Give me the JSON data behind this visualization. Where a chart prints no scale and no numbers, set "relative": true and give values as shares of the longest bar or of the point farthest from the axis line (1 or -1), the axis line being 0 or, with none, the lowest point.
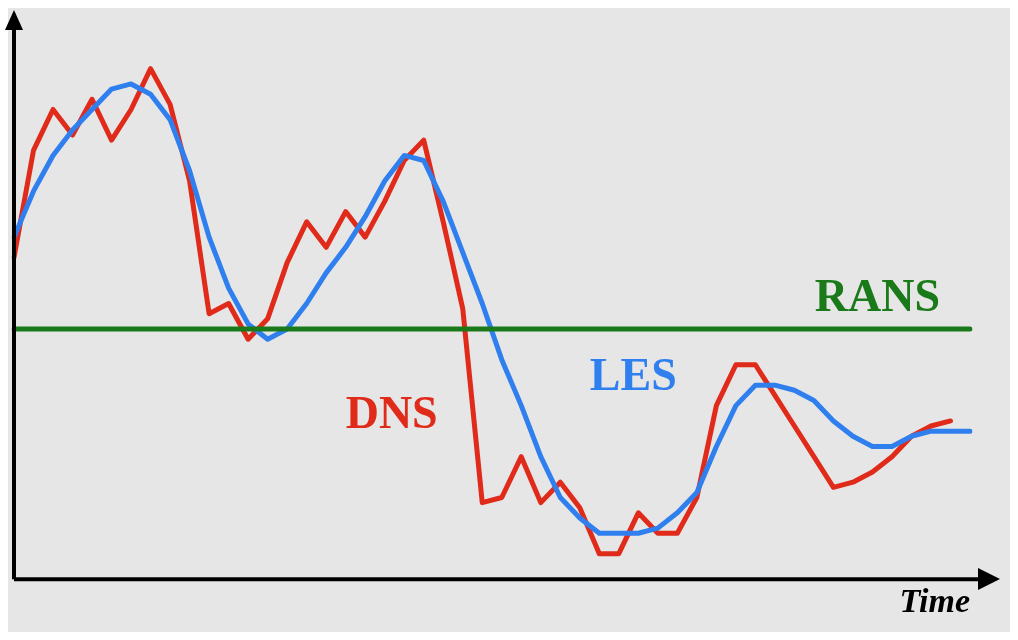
{
  "chart_data": {
    "type": "line",
    "relative": true,
    "xlabel": "Time",
    "grid": false,
    "legend": false,
    "marker": "none",
    "line_style": "solid",
    "categories": [
      null,
      null,
      null,
      null,
      null,
      null,
      null,
      null,
      null,
      null,
      null,
      null,
      null,
      null,
      null,
      null,
      null,
      null,
      null,
      null,
      null,
      null,
      null,
      null,
      null,
      null,
      null,
      null,
      null,
      null,
      null,
      null,
      null,
      null,
      null,
      null,
      null,
      null,
      null,
      null,
      null,
      null,
      null,
      null,
      null,
      null,
      null,
      null,
      null,
      null
    ],
    "series": [
      {
        "name": "RANS",
        "color": "#1a7a1a",
        "values": [
          0.49,
          0.49,
          0.49,
          0.49,
          0.49,
          0.49,
          0.49,
          0.49,
          0.49,
          0.49,
          0.49,
          0.49,
          0.49,
          0.49,
          0.49,
          0.49,
          0.49,
          0.49,
          0.49,
          0.49,
          0.49,
          0.49,
          0.49,
          0.49,
          0.49,
          0.49,
          0.49,
          0.49,
          0.49,
          0.49,
          0.49,
          0.49,
          0.49,
          0.49,
          0.49,
          0.49,
          0.49,
          0.49,
          0.49,
          0.49,
          0.49,
          0.49,
          0.49,
          0.49,
          0.49,
          0.49,
          0.49,
          0.49,
          0.49,
          0.49
        ]
      },
      {
        "name": "LES",
        "color": "#2f7fef",
        "values": [
          0.67,
          0.76,
          0.83,
          0.88,
          0.92,
          0.96,
          0.97,
          0.95,
          0.9,
          0.8,
          0.67,
          0.57,
          0.5,
          0.47,
          0.49,
          0.54,
          0.6,
          0.65,
          0.71,
          0.78,
          0.83,
          0.82,
          0.74,
          0.64,
          0.54,
          0.43,
          0.34,
          0.24,
          0.16,
          0.12,
          0.09,
          0.09,
          0.09,
          0.1,
          0.13,
          0.17,
          0.26,
          0.34,
          0.38,
          0.38,
          0.37,
          0.35,
          0.31,
          0.28,
          0.26,
          0.26,
          0.28,
          0.29,
          0.29,
          0.29
        ]
      },
      {
        "name": "DNS",
        "color": "#e02a1a",
        "values": [
          0.63,
          0.84,
          0.92,
          0.87,
          0.94,
          0.86,
          0.92,
          1.0,
          0.93,
          0.78,
          0.52,
          0.54,
          0.47,
          0.51,
          0.62,
          0.7,
          0.65,
          0.72,
          0.67,
          0.74,
          0.82,
          0.86,
          0.7,
          0.53,
          0.15,
          0.16,
          0.24,
          0.15,
          0.19,
          0.14,
          0.05,
          0.05,
          0.13,
          0.09,
          0.09,
          0.16,
          0.34,
          0.42,
          0.42,
          0.36,
          0.3,
          0.24,
          0.18,
          0.19,
          0.21,
          0.24,
          0.28,
          0.3,
          0.31,
          null
        ]
      }
    ]
  }
}
